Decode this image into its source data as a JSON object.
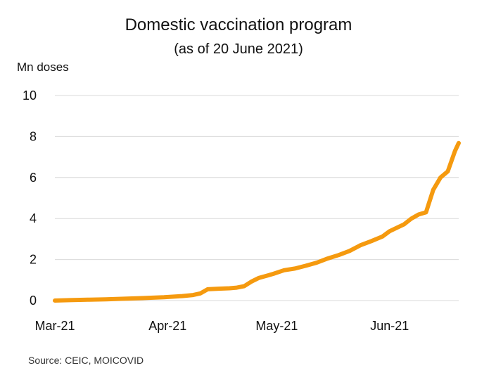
{
  "chart_data": {
    "type": "line",
    "title": "Domestic vaccination program",
    "subtitle": "(as of 20 June 2021)",
    "ylabel": "Mn doses",
    "xlabel": "",
    "ylim": [
      0,
      10
    ],
    "yticks": [
      0,
      2,
      4,
      6,
      8,
      10
    ],
    "xticks": [
      "Mar-21",
      "Apr-21",
      "May-21",
      "Jun-21"
    ],
    "xlim": [
      "2021-03-01",
      "2021-06-20"
    ],
    "grid": true,
    "line_color": "#F59A0F",
    "series": [
      {
        "x": [
          "2021-03-01",
          "2021-03-05",
          "2021-03-10",
          "2021-03-15",
          "2021-03-20",
          "2021-03-25",
          "2021-03-31",
          "2021-04-05",
          "2021-04-08",
          "2021-04-10",
          "2021-04-12",
          "2021-04-15",
          "2021-04-18",
          "2021-04-20",
          "2021-04-22",
          "2021-04-24",
          "2021-04-26",
          "2021-04-28",
          "2021-04-30",
          "2021-05-03",
          "2021-05-06",
          "2021-05-09",
          "2021-05-12",
          "2021-05-15",
          "2021-05-18",
          "2021-05-21",
          "2021-05-24",
          "2021-05-27",
          "2021-05-30",
          "2021-06-01",
          "2021-06-03",
          "2021-06-05",
          "2021-06-07",
          "2021-06-09",
          "2021-06-11",
          "2021-06-13",
          "2021-06-15",
          "2021-06-17",
          "2021-06-19",
          "2021-06-20"
        ],
        "values": [
          0.0,
          0.02,
          0.04,
          0.06,
          0.09,
          0.12,
          0.16,
          0.22,
          0.27,
          0.35,
          0.55,
          0.58,
          0.6,
          0.63,
          0.7,
          0.92,
          1.1,
          1.2,
          1.3,
          1.48,
          1.56,
          1.7,
          1.85,
          2.05,
          2.22,
          2.42,
          2.7,
          2.9,
          3.12,
          3.38,
          3.55,
          3.72,
          4.0,
          4.2,
          4.3,
          5.4,
          6.0,
          6.3,
          7.3,
          7.68
        ]
      }
    ]
  },
  "source_text": "Source: CEIC, MOICOVID"
}
